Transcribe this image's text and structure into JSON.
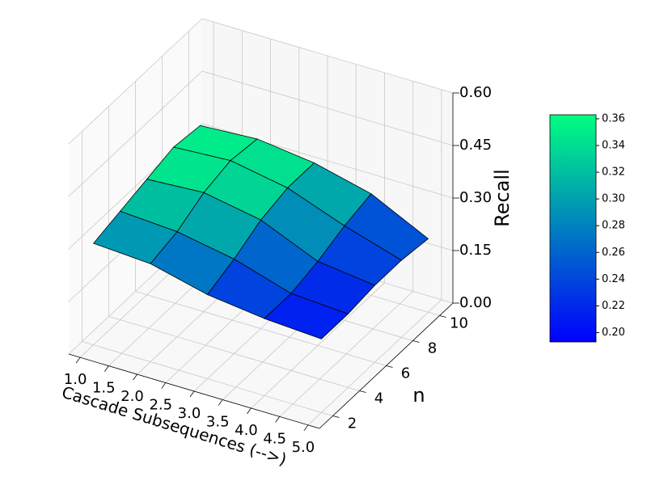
{
  "chart_data": {
    "type": "surface3d",
    "x_label": "Cascade Subsequences (-->)",
    "y_label": "n",
    "z_label": "Recall",
    "x": [
      1,
      2,
      3,
      4,
      5
    ],
    "y": [
      2,
      4,
      6,
      8,
      10
    ],
    "z": [
      [
        0.29,
        0.28,
        0.24,
        0.22,
        0.21
      ],
      [
        0.31,
        0.3,
        0.27,
        0.22,
        0.21
      ],
      [
        0.33,
        0.34,
        0.31,
        0.24,
        0.22
      ],
      [
        0.35,
        0.36,
        0.33,
        0.27,
        0.22
      ],
      [
        0.34,
        0.35,
        0.33,
        0.29,
        0.21
      ]
    ],
    "xlim": [
      0.8,
      5.2
    ],
    "ylim": [
      1,
      11
    ],
    "zlim": [
      0,
      0.6
    ],
    "xticks": [
      {
        "value": 1,
        "label": "1.0"
      },
      {
        "value": 1.5,
        "label": "1.5"
      },
      {
        "value": 2,
        "label": "2.0"
      },
      {
        "value": 2.5,
        "label": "2.5"
      },
      {
        "value": 3,
        "label": "3.0"
      },
      {
        "value": 3.5,
        "label": "3.5"
      },
      {
        "value": 4,
        "label": "4.0"
      },
      {
        "value": 4.5,
        "label": "4.5"
      },
      {
        "value": 5,
        "label": "5.0"
      }
    ],
    "yticks": [
      2,
      4,
      6,
      8,
      10
    ],
    "zticks": [
      {
        "value": 0,
        "label": "0.00"
      },
      {
        "value": 0.15,
        "label": "0.15"
      },
      {
        "value": 0.3,
        "label": "0.30"
      },
      {
        "value": 0.45,
        "label": "0.45"
      },
      {
        "value": 0.6,
        "label": "0.60"
      }
    ],
    "colormap": [
      "#0000ff",
      "#00ff80"
    ],
    "clim": [
      0.193,
      0.363
    ],
    "cticks": [
      {
        "value": 0.2,
        "label": "0.20"
      },
      {
        "value": 0.22,
        "label": "0.22"
      },
      {
        "value": 0.24,
        "label": "0.24"
      },
      {
        "value": 0.26,
        "label": "0.26"
      },
      {
        "value": 0.28,
        "label": "0.28"
      },
      {
        "value": 0.3,
        "label": "0.30"
      },
      {
        "value": 0.32,
        "label": "0.32"
      },
      {
        "value": 0.34,
        "label": "0.34"
      },
      {
        "value": 0.36,
        "label": "0.36"
      }
    ],
    "grid": true
  }
}
